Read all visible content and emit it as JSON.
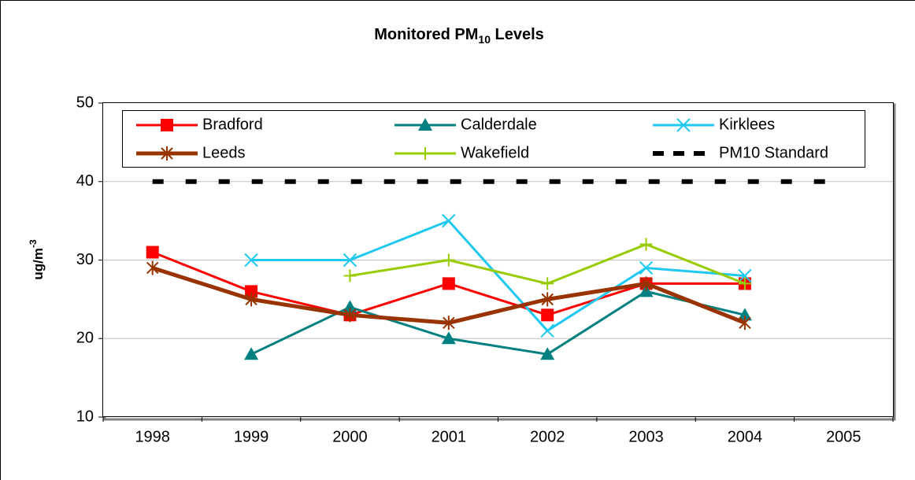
{
  "chart_data": {
    "type": "line",
    "title": {
      "main": "Monitored PM",
      "sub": "10",
      "end": " Levels"
    },
    "y_label": {
      "main": "ug/m",
      "sup": "-3"
    },
    "categories": [
      "1998",
      "1999",
      "2000",
      "2001",
      "2002",
      "2003",
      "2004",
      "2005"
    ],
    "ylim": [
      10,
      50
    ],
    "yticks": [
      10,
      20,
      30,
      40,
      50
    ],
    "grid": true,
    "legend": "top",
    "series": [
      {
        "name": "Bradford",
        "color": "#ff0000",
        "marker": "square",
        "values": [
          31,
          26,
          23,
          27,
          23,
          27,
          27,
          null
        ]
      },
      {
        "name": "Calderdale",
        "color": "#008080",
        "marker": "triangle",
        "values": [
          null,
          18,
          24,
          20,
          18,
          26,
          23,
          null
        ]
      },
      {
        "name": "Kirklees",
        "color": "#1ec8f0",
        "marker": "x",
        "values": [
          null,
          30,
          30,
          35,
          21,
          29,
          28,
          null
        ]
      },
      {
        "name": "Leeds",
        "color": "#993300",
        "marker": "star",
        "width": 5,
        "values": [
          29,
          25,
          23,
          22,
          25,
          27,
          22,
          null
        ]
      },
      {
        "name": "Wakefield",
        "color": "#99cc00",
        "marker": "plus",
        "values": [
          null,
          null,
          28,
          30,
          27,
          32,
          27,
          null
        ]
      },
      {
        "name": "PM10 Standard",
        "color": "#000000",
        "marker": "none",
        "dash": true,
        "values": [
          40,
          40,
          40,
          40,
          40,
          40,
          40,
          40
        ]
      }
    ]
  }
}
